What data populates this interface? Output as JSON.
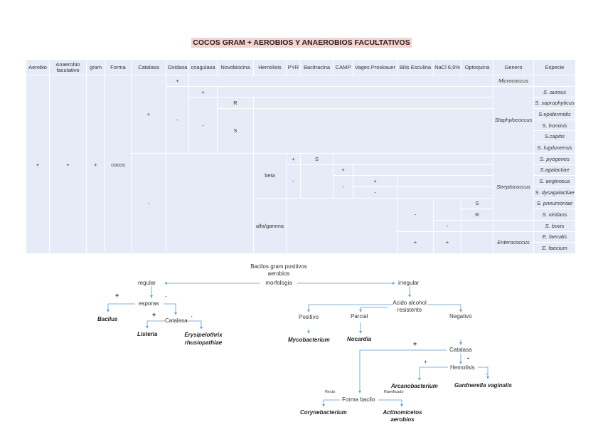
{
  "title": "COCOS GRAM + AEROBIOS Y ANAEROBIOS FACULTATIVOS",
  "table": {
    "headers": [
      "Aerobio",
      "Anaerobio facutativo",
      "gram",
      "Forma",
      "Catalasa",
      "Oxidasa",
      "coagulasa",
      "Novobiocina",
      "Hemolisis",
      "PYR",
      "Bacitracina",
      "CAMP",
      "Vages Proskauer",
      "Bilis Esculina",
      "NaCl 6,5%",
      "Optoquina",
      "Genero",
      "Especie"
    ],
    "aerobio": "+",
    "anaerobio": "+",
    "gram": "+",
    "forma": "cocos",
    "catalasa_pos": "+",
    "catalasa_neg": "-",
    "oxidasa_pos": "+",
    "oxidasa_neg": "-",
    "coagulasa_pos": "+",
    "coagulasa_neg": "-",
    "novo_r": "R",
    "novo_s": "S",
    "hem_beta": "beta",
    "hem_alfa": "alfa/gamma",
    "pyr_pos": "+",
    "pyr_neg": "-",
    "baci_s": "S",
    "camp_pos": "+",
    "camp_neg": "-",
    "vp_pos": "+",
    "vp_neg": "-",
    "bilis_neg": "-",
    "bilis_pos": "+",
    "nacl_neg": "-",
    "nacl_pos": "+",
    "opto_s": "S",
    "opto_r": "R",
    "generos": [
      "Micrococcus",
      "Staphylococcus",
      "Streptococcus",
      "Enterococcus"
    ],
    "especies": [
      "S. aureus",
      "S. saprophyticus",
      "S.epidermidis",
      "S. hominis",
      "S.capitis",
      "S. lugdunensis",
      "S. pyogenes",
      "S.agalactiae",
      "S. anginosus",
      "S. dysagalactiae",
      "S. pneumoniae",
      "S. viridans",
      "S. bovis",
      "E. faecalis",
      "E. faecium"
    ]
  },
  "flow": {
    "root1": "Bacilos gram positivos",
    "root2": "aerobios",
    "root3": "morfologia",
    "regular": "regular",
    "irregular": "irregular",
    "plus": "+",
    "minus": "-",
    "esporas": "esporas",
    "bacillus": "Bacilus",
    "catalasa": "Catalasa",
    "listeria": "Listeria",
    "erysi1": "Erysipelothrix",
    "erysi2": "rhusiopathiae",
    "acido1": "Acido alcohol",
    "acido2": "resistente",
    "positivo": "Positivo",
    "parcial": "Parcial",
    "negativo": "Negativo",
    "myco": "Mycobacterium",
    "nocardia": "Nocardia",
    "catalasa2": "Catalasa",
    "hemolisis": "Hemolisis",
    "arcano": "Arcanobacterium",
    "gardnerella": "Gardnerella vaginalis",
    "forma_bacilo": "Forma bacilo",
    "recto": "Recto",
    "ramificado": "Ramificado",
    "coryne": "Corynebacterium",
    "actino1": "Actinomicetos",
    "actino2": "aerobios"
  }
}
